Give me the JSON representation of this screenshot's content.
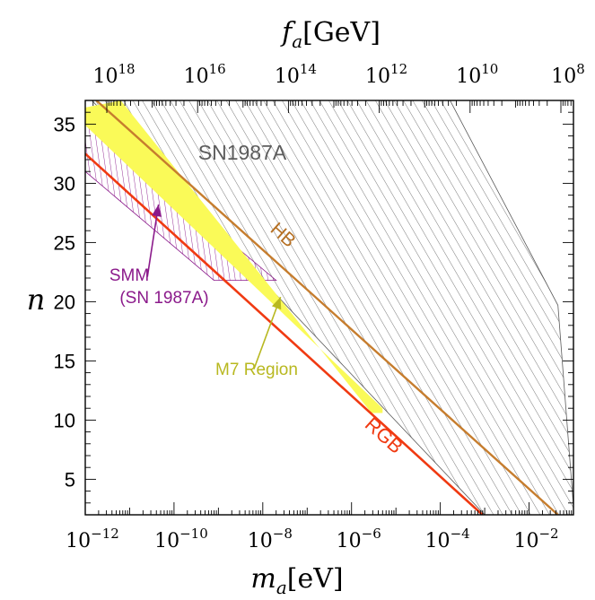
{
  "chart_data": {
    "type": "region-plot",
    "x_bottom": {
      "label_main": "m",
      "label_sub": "a",
      "label_unit": "[eV]",
      "scale": "log",
      "range": [
        1e-12,
        0.1
      ],
      "major_exponents": [
        -12,
        -10,
        -8,
        -6,
        -4,
        -2
      ],
      "tick_base": "10"
    },
    "x_top": {
      "label_main": "f",
      "label_sub": "a",
      "label_unit": "[GeV]",
      "scale": "log",
      "major_exponents": [
        18,
        16,
        14,
        12,
        10,
        8
      ],
      "tick_base": "10"
    },
    "y": {
      "label": "n",
      "scale": "linear",
      "range": [
        2,
        37
      ],
      "ticks": [
        "5",
        "10",
        "15",
        "20",
        "25",
        "30",
        "35"
      ]
    },
    "regions": [
      {
        "id": "sn1987a",
        "label": "SN1987A",
        "style": "hatched",
        "color": "#5a5a5a",
        "polygon_log10ma_n": [
          [
            -11.7,
            37
          ],
          [
            -3.78,
            37
          ],
          [
            -1.35,
            19.7
          ],
          [
            -1.0,
            2.7
          ],
          [
            -1.0,
            2
          ],
          [
            -3.0,
            2
          ],
          [
            -11.85,
            37
          ]
        ]
      },
      {
        "id": "smm",
        "label_lines": [
          "SMM",
          "(SN 1987A)"
        ],
        "style": "hatched",
        "color": "#8b1a8b",
        "polygon_log10ma_n": [
          [
            -12,
            35.3
          ],
          [
            -12,
            31
          ],
          [
            -9.1,
            21.8
          ],
          [
            -7.7,
            21.8
          ],
          [
            -12,
            35.3
          ]
        ]
      },
      {
        "id": "m7",
        "label": "M7 Region",
        "style": "filled",
        "color": "#fafa58",
        "polygon_log10ma_n": [
          [
            -12,
            36.4
          ],
          [
            -12,
            34.9
          ],
          [
            -5.3,
            11.0
          ],
          [
            -5.3,
            10.6
          ],
          [
            -5.55,
            10.6
          ],
          [
            -11.2,
            37
          ],
          [
            -12,
            36.4
          ]
        ]
      }
    ],
    "lines": [
      {
        "id": "hb",
        "label": "HB",
        "color": "#c67d2e",
        "points_log10ma_n": [
          [
            -11.75,
            37
          ],
          [
            -1.35,
            2
          ]
        ]
      },
      {
        "id": "rgb",
        "label": "RGB",
        "color": "#f03a12",
        "points_log10ma_n": [
          [
            -12,
            32.5
          ],
          [
            -3.05,
            2
          ]
        ]
      }
    ],
    "annotations": [
      {
        "text_ref": "smm",
        "arrow_from_log10ma_n": [
          -10.6,
          22.1
        ],
        "arrow_to_log10ma_n": [
          -10.35,
          28.2
        ],
        "color": "#8b1a8b"
      },
      {
        "text_ref": "m7",
        "arrow_from_log10ma_n": [
          -8.2,
          14.3
        ],
        "arrow_to_log10ma_n": [
          -7.6,
          20.4
        ],
        "color": "#b8b820"
      }
    ],
    "grid": false,
    "frame": true
  }
}
